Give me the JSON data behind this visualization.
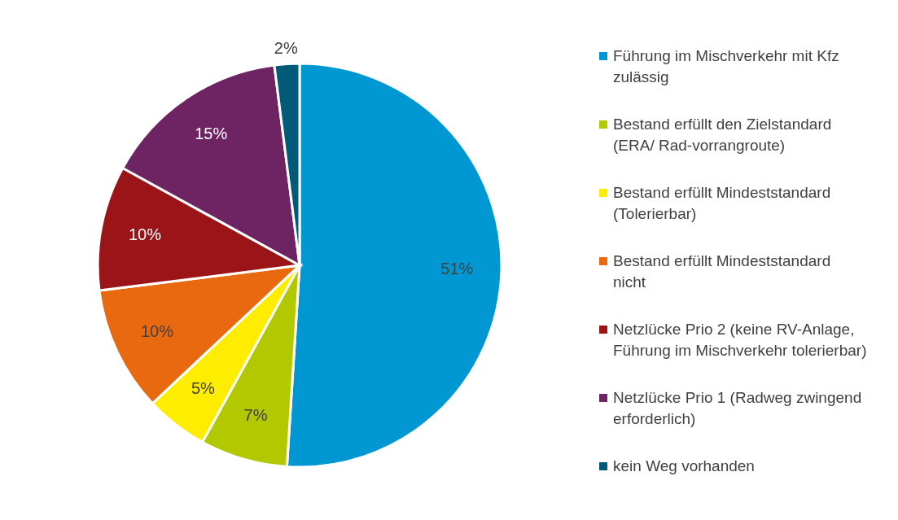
{
  "chart_data": {
    "type": "pie",
    "categories": [
      "Führung im Mischverkehr mit Kfz zulässig",
      "Bestand erfüllt den Zielstandard (ERA/ Rad-vorrangroute)",
      "Bestand erfüllt Mindeststandard (Tolerierbar)",
      "Bestand erfüllt Mindeststandard nicht",
      "Netzlücke Prio 2 (keine RV-Anlage, Führung im Mischverkehr tolerierbar)",
      "Netzlücke Prio 1 (Radweg zwingend erforderlich)",
      "kein Weg vorhanden"
    ],
    "values": [
      51,
      7,
      5,
      10,
      10,
      15,
      2
    ],
    "value_labels": [
      "51%",
      "7%",
      "5%",
      "10%",
      "10%",
      "15%",
      "2%"
    ],
    "colors": [
      "#0097d3",
      "#b2c800",
      "#ffed00",
      "#e8690f",
      "#9b1518",
      "#6e2463",
      "#005a78"
    ],
    "legend": "right"
  }
}
